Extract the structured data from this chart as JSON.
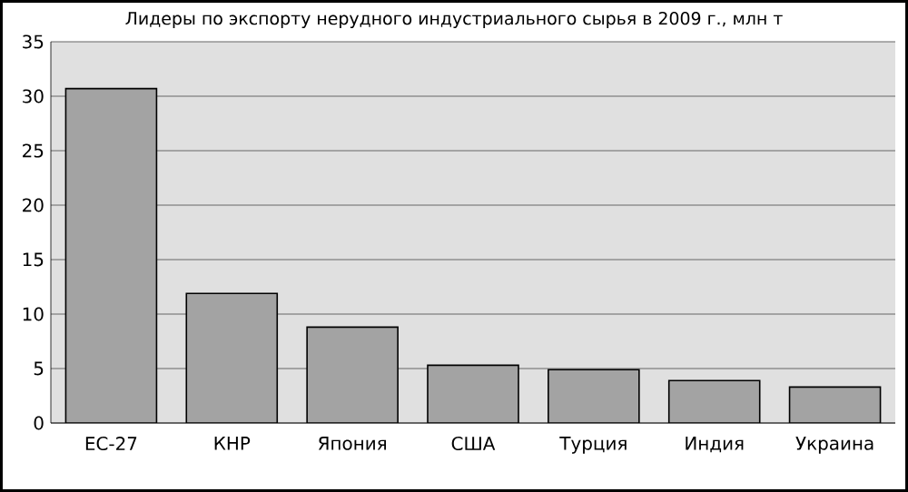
{
  "chart_data": {
    "type": "bar",
    "title": "Лидеры по экспорту нерудного индустриального сырья в 2009 г., млн т",
    "categories": [
      "ЕС-27",
      "КНР",
      "Япония",
      "США",
      "Турция",
      "Индия",
      "Украина"
    ],
    "values": [
      30.7,
      11.9,
      8.8,
      5.3,
      4.9,
      3.9,
      3.3
    ],
    "color": "#a3a3a3",
    "ylim": [
      0,
      35
    ],
    "yticks": [
      0,
      5,
      10,
      15,
      20,
      25,
      30,
      35
    ],
    "grid": "y"
  }
}
